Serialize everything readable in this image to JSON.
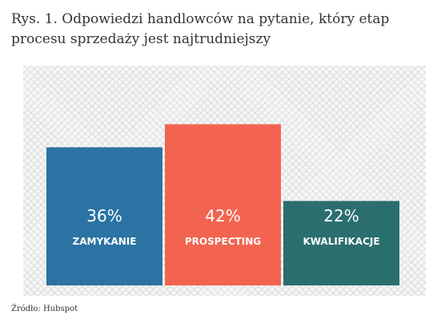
{
  "title": "Rys. 1. Odpowiedzi handlowców na pytanie, który etap procesu sprzedaży jest najtrudniejszy",
  "source": "Źródło: Hubspot",
  "chart_data": {
    "type": "bar",
    "title": "Rys. 1. Odpowiedzi handlowców na pytanie, który etap procesu sprzedaży jest najtrudniejszy",
    "categories": [
      "ZAMYKANIE",
      "PROSPECTING",
      "KWALIFIKACJE"
    ],
    "values": [
      36,
      42,
      22
    ],
    "value_labels": [
      "36%",
      "42%",
      "22%"
    ],
    "colors": [
      "#2a73a3",
      "#f26450",
      "#2a6e6e"
    ],
    "ylim": [
      0,
      50
    ],
    "grid": false,
    "legend": "none"
  }
}
